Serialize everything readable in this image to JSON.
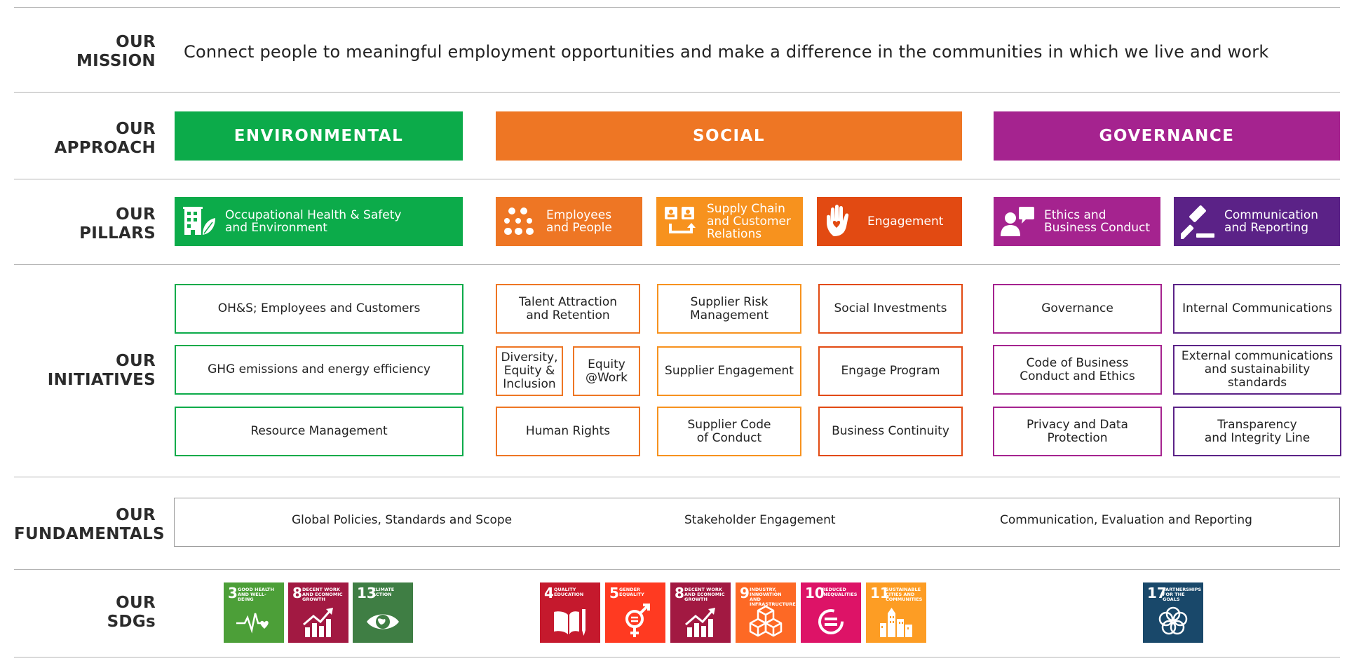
{
  "rows": {
    "mission": [
      "OUR",
      "MISSION"
    ],
    "approach": [
      "OUR",
      "APPROACH"
    ],
    "pillars": [
      "OUR",
      "PILLARS"
    ],
    "initiatives": [
      "OUR",
      "INITIATIVES"
    ],
    "fundamentals": [
      "OUR",
      "FUNDAMENTALS"
    ],
    "sdgs": [
      "OUR",
      "SDGs"
    ]
  },
  "mission_text": "Connect people to meaningful employment opportunities and make a difference in the communities in which we live and work",
  "approach": {
    "environmental": "ENVIRONMENTAL",
    "social": "SOCIAL",
    "governance": "GOVERNANCE"
  },
  "pillars": {
    "ohs": "Occupational Health & Safety\nand Environment",
    "employees": "Employees\nand People",
    "supply": "Supply Chain\nand Customer\nRelations",
    "engagement": "Engagement",
    "ethics": "Ethics and\nBusiness Conduct",
    "communication": "Communication\nand Reporting"
  },
  "initiatives": {
    "env": [
      "OH&S; Employees and Customers",
      "GHG emissions and energy efficiency",
      "Resource Management"
    ],
    "employees": [
      "Talent Attraction\nand Retention",
      "Diversity,\nEquity &\nInclusion",
      "Equity\n@Work",
      "Human Rights"
    ],
    "supply": [
      "Supplier Risk\nManagement",
      "Supplier Engagement",
      "Supplier Code\nof Conduct"
    ],
    "engagement": [
      "Social Investments",
      "Engage Program",
      "Business Continuity"
    ],
    "ethics": [
      "Governance",
      "Code of Business\nConduct and Ethics",
      "Privacy and Data\nProtection"
    ],
    "communication": [
      "Internal Communications",
      "External communications\nand sustainability standards",
      "Transparency\nand Integrity Line"
    ]
  },
  "fundamentals": [
    "Global Policies, Standards and Scope",
    "Stakeholder Engagement",
    "Communication, Evaluation and Reporting"
  ],
  "sdgs": [
    {
      "num": "3",
      "caption": "GOOD HEALTH AND WELL-BEING",
      "color": "#4c9f38",
      "icon": "heartbeat-icon"
    },
    {
      "num": "8",
      "caption": "DECENT WORK AND ECONOMIC GROWTH",
      "color": "#a21942",
      "icon": "growth-chart-icon"
    },
    {
      "num": "13",
      "caption": "CLIMATE ACTION",
      "color": "#3f7e44",
      "icon": "eye-globe-icon"
    },
    {
      "num": "4",
      "caption": "QUALITY EDUCATION",
      "color": "#c5192d",
      "icon": "book-pencil-icon"
    },
    {
      "num": "5",
      "caption": "GENDER EQUALITY",
      "color": "#ff3a21",
      "icon": "gender-icon"
    },
    {
      "num": "8",
      "caption": "DECENT WORK AND ECONOMIC GROWTH",
      "color": "#a21942",
      "icon": "growth-chart-icon"
    },
    {
      "num": "9",
      "caption": "INDUSTRY, INNOVATION AND INFRASTRUCTURE",
      "color": "#fd6925",
      "icon": "cubes-icon"
    },
    {
      "num": "10",
      "caption": "REDUCED INEQUALITIES",
      "color": "#dd1367",
      "icon": "equal-circle-icon"
    },
    {
      "num": "11",
      "caption": "SUSTAINABLE CITIES AND COMMUNITIES",
      "color": "#fd9d24",
      "icon": "city-icon"
    },
    {
      "num": "17",
      "caption": "PARTNERSHIPS FOR THE GOALS",
      "color": "#19486a",
      "icon": "flower-rings-icon"
    }
  ],
  "colors": {
    "environmental": "#0cab4a",
    "social": "#ee7624",
    "governance": "#a5238f",
    "employees": "#ee7624",
    "supply": "#f7921e",
    "engagement": "#e24a12",
    "ethics": "#a5238f",
    "communication": "#5b2287"
  }
}
